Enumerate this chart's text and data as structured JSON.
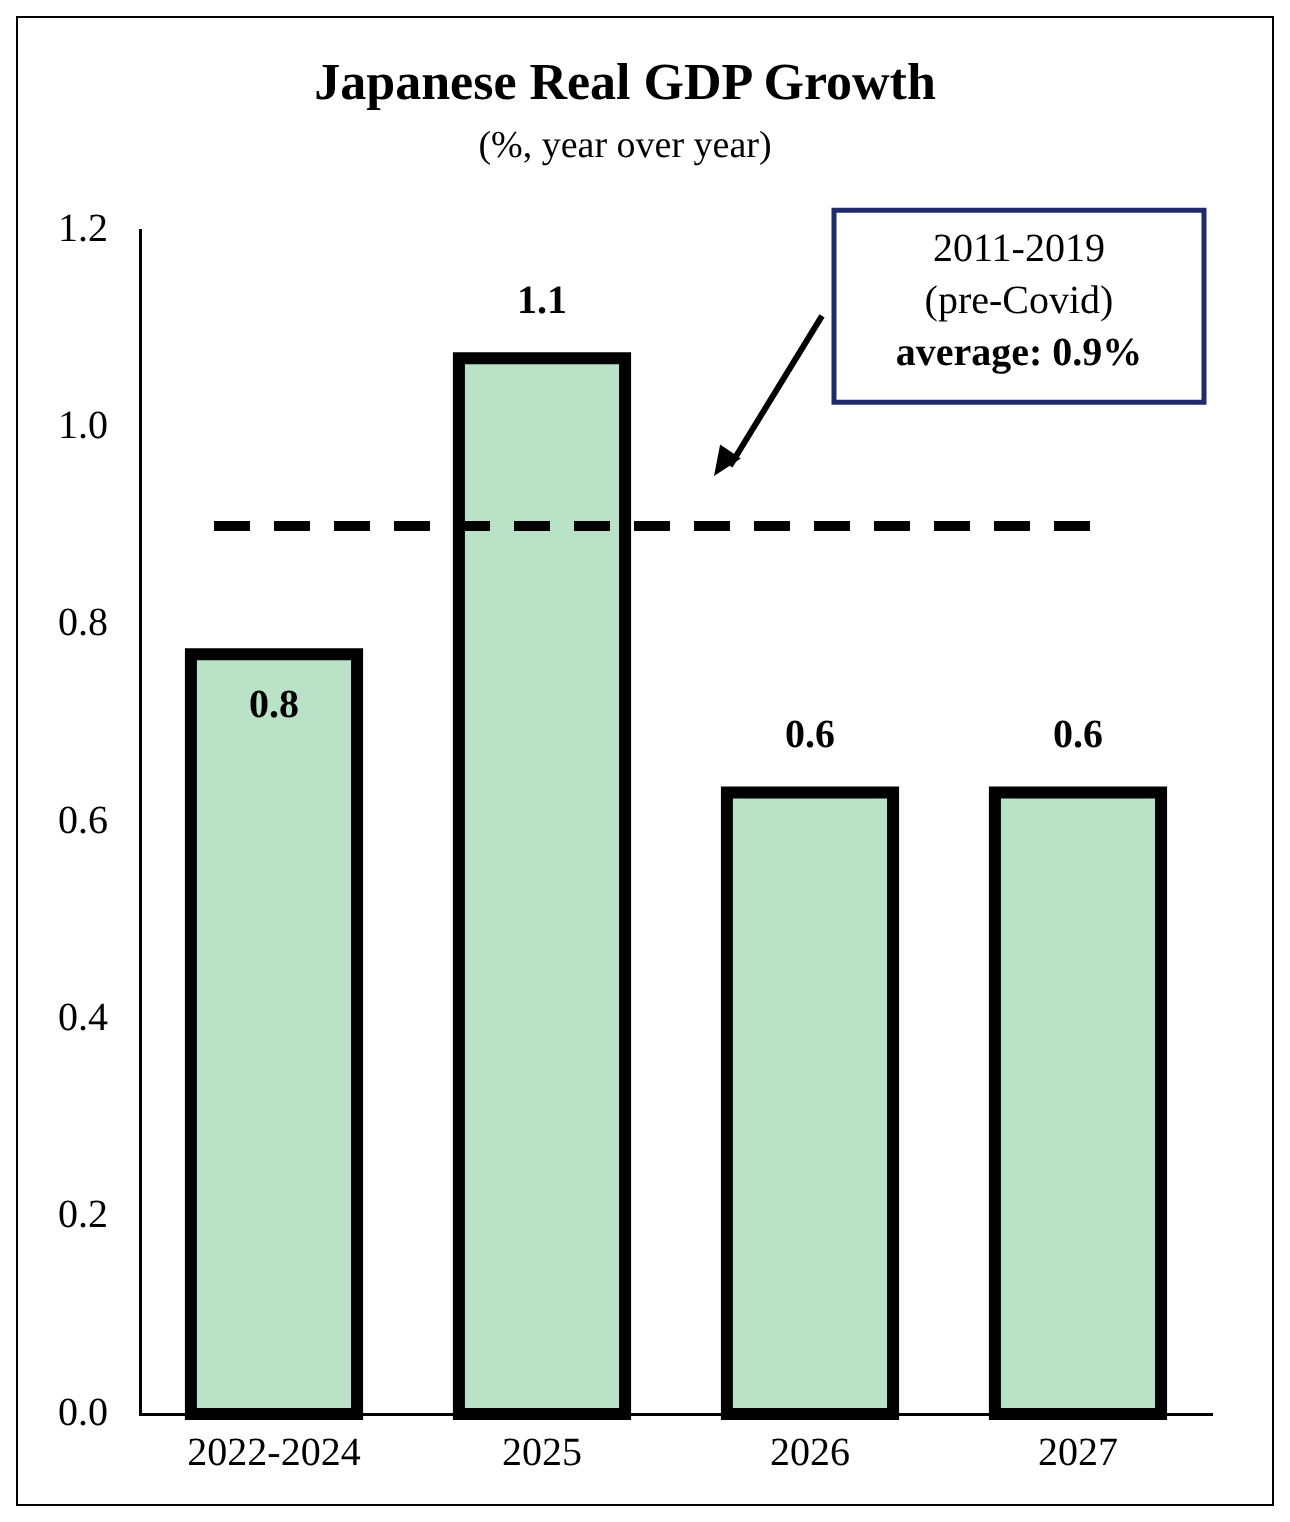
{
  "chart_data": {
    "type": "bar",
    "title": "Japanese Real GDP Growth",
    "subtitle": "(%, year over year)",
    "categories": [
      "2022-2024",
      "2025",
      "2026",
      "2027"
    ],
    "values": [
      0.77,
      1.07,
      0.63,
      0.63
    ],
    "value_labels": [
      "0.8",
      "1.1",
      "0.6",
      "0.6"
    ],
    "color": "#b9e2c6",
    "ylim": [
      0,
      1.2
    ],
    "yticks": [
      {
        "value": 0,
        "label": "0.0"
      },
      {
        "value": 0.2,
        "label": "0.2"
      },
      {
        "value": 0.4,
        "label": "0.4"
      },
      {
        "value": 0.6,
        "label": "0.6"
      },
      {
        "value": 0.8,
        "label": "0.8"
      },
      {
        "value": 1.0,
        "label": "1.0"
      },
      {
        "value": 1.2,
        "label": "1.2"
      }
    ],
    "ref_lines": [
      {
        "axis": "y",
        "value": 0.9,
        "label": "2011-2019 (pre-Covid) average: 0.9%",
        "color": "#000000",
        "line_style": "dashed"
      }
    ],
    "grid": false,
    "legend": false
  }
}
